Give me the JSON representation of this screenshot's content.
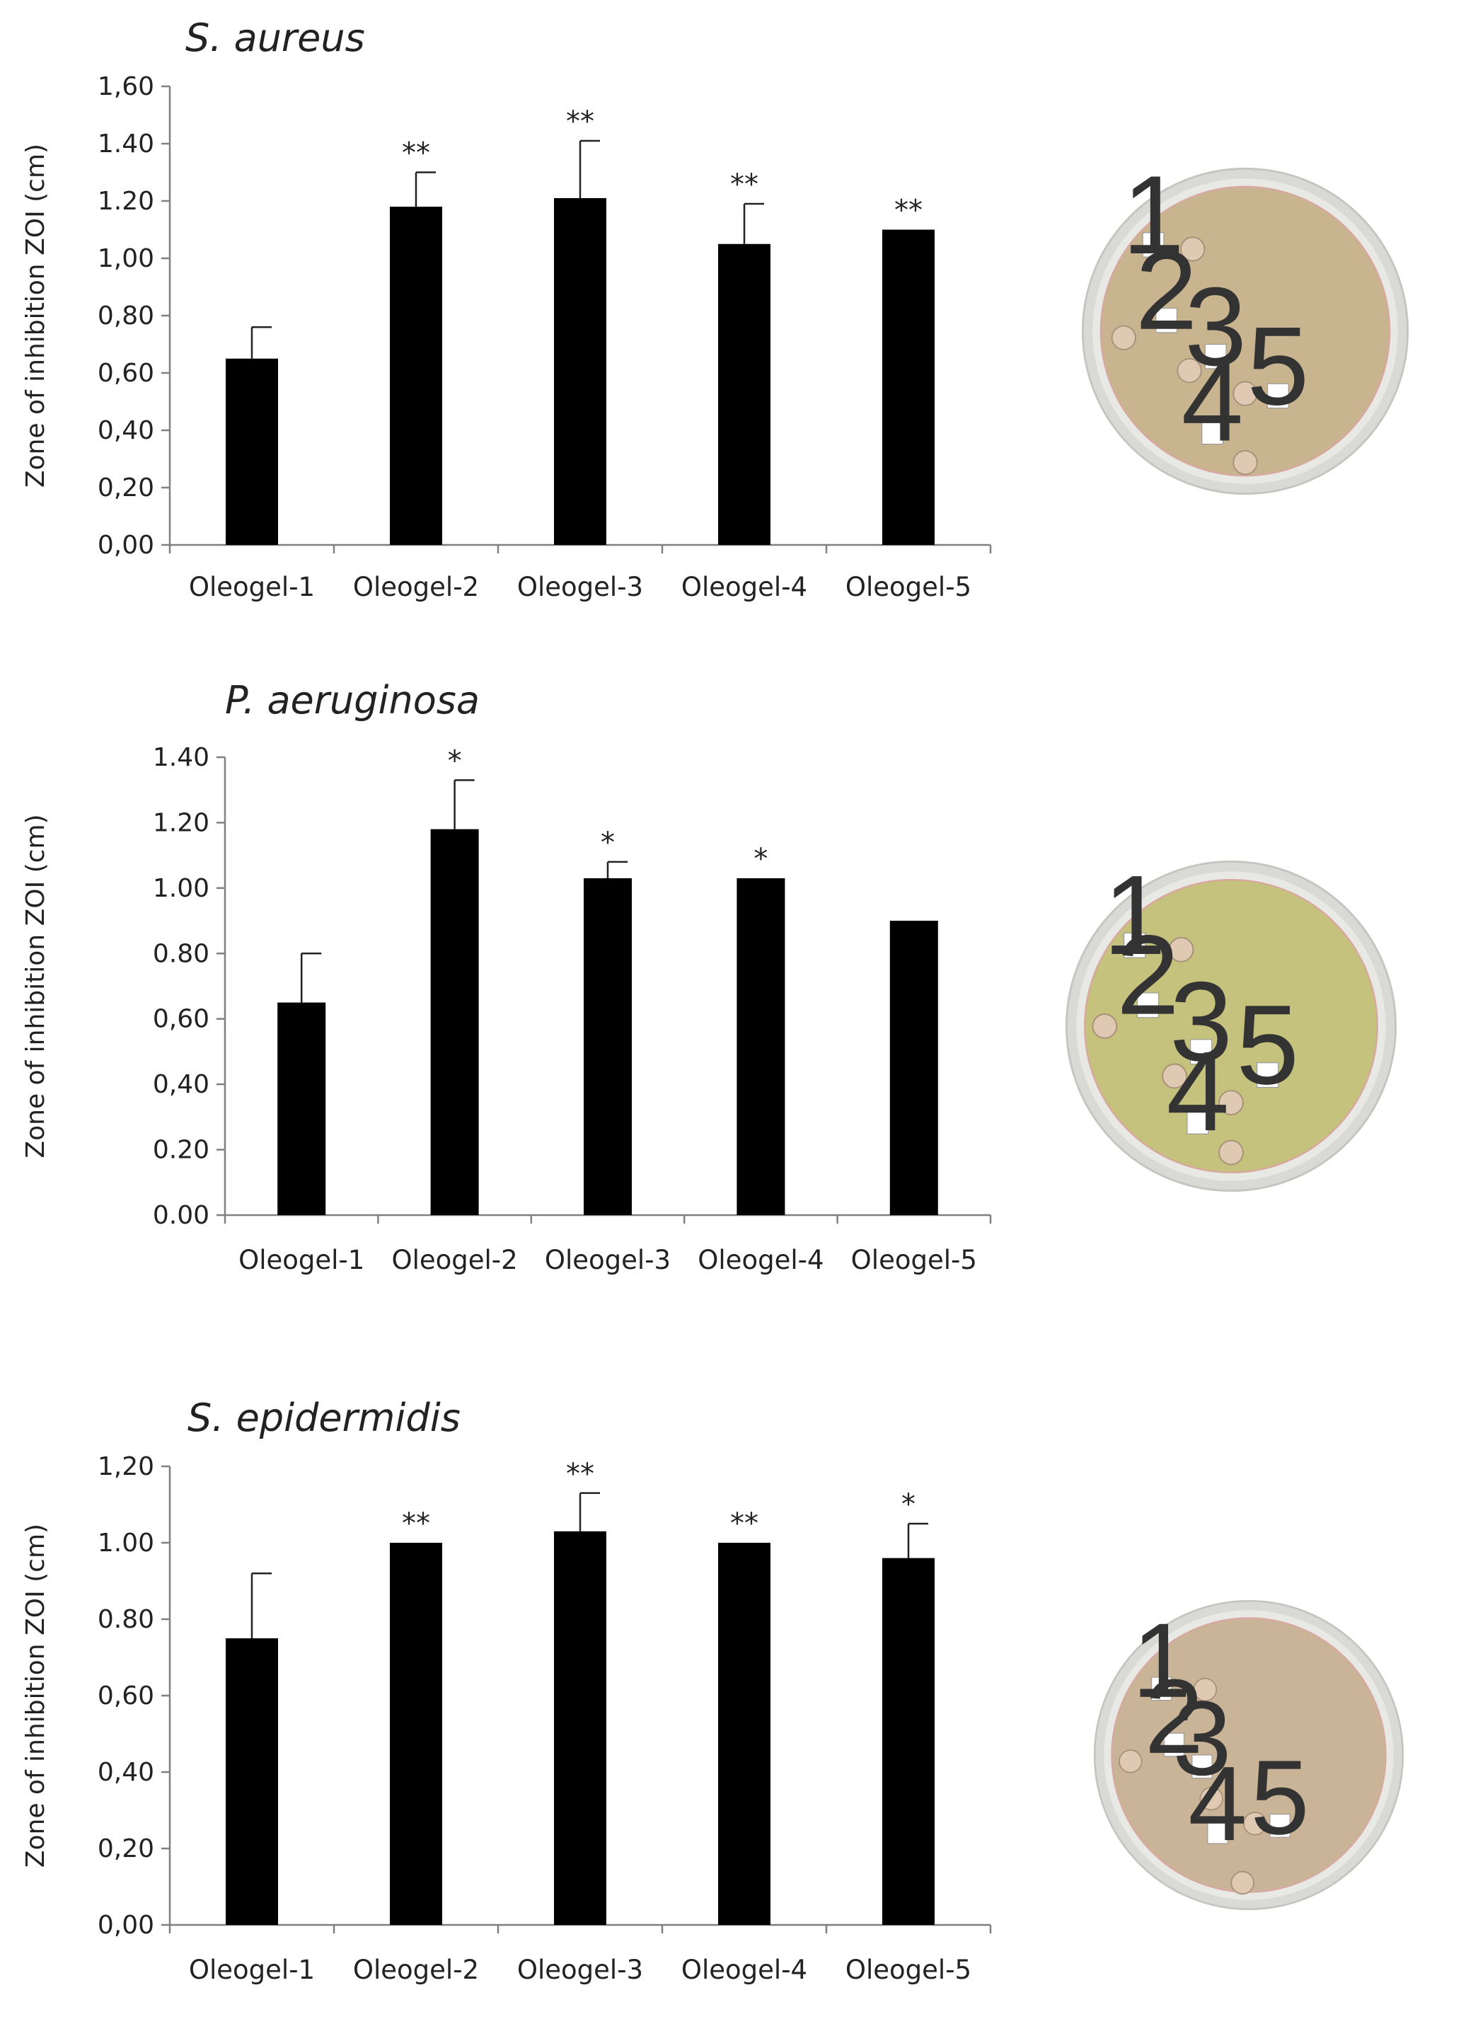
{
  "colors": {
    "bar": "#000000",
    "axis": "#808080",
    "text": "#222222"
  },
  "chart_data": [
    {
      "type": "bar",
      "title": "S. aureus",
      "xlabel": "",
      "ylabel": "Zone of inhibition ZOI (cm)",
      "categories": [
        "Oleogel-1",
        "Oleogel-2",
        "Oleogel-3",
        "Oleogel-4",
        "Oleogel-5"
      ],
      "values": [
        0.65,
        1.18,
        1.21,
        1.05,
        1.1
      ],
      "errors": [
        0.11,
        0.12,
        0.2,
        0.14,
        0.0
      ],
      "significance": [
        "",
        "**",
        "**",
        "**",
        "**"
      ],
      "ylim": [
        0,
        1.6
      ],
      "yticks": [
        "0,00",
        "0,20",
        "0,40",
        "0,60",
        "0,80",
        "1,00",
        "1.20",
        "1.40",
        "1,60"
      ],
      "plate_labels": [
        "1",
        "2",
        "3",
        "4",
        "5"
      ],
      "plate_color": "#c8b48e"
    },
    {
      "type": "bar",
      "title": "P. aeruginosa",
      "xlabel": "",
      "ylabel": "Zone of inhibition ZOI (cm)",
      "categories": [
        "Oleogel-1",
        "Oleogel-2",
        "Oleogel-3",
        "Oleogel-4",
        "Oleogel-5"
      ],
      "values": [
        0.65,
        1.18,
        1.03,
        1.03,
        0.9
      ],
      "errors": [
        0.15,
        0.15,
        0.05,
        0.0,
        0.0
      ],
      "significance": [
        "",
        "*",
        "*",
        "*",
        ""
      ],
      "ylim": [
        0,
        1.4
      ],
      "yticks": [
        "0.00",
        "0.20",
        "0,40",
        "0,60",
        "0.80",
        "1.00",
        "1.20",
        "1.40"
      ],
      "plate_labels": [
        "1",
        "2",
        "3",
        "4",
        "5"
      ],
      "plate_color": "#c4c27c"
    },
    {
      "type": "bar",
      "title": "S. epidermidis",
      "xlabel": "",
      "ylabel": "Zone of inhibition ZOI (cm)",
      "categories": [
        "Oleogel-1",
        "Oleogel-2",
        "Oleogel-3",
        "Oleogel-4",
        "Oleogel-5"
      ],
      "values": [
        0.75,
        1.0,
        1.03,
        1.0,
        0.96
      ],
      "errors": [
        0.17,
        0.0,
        0.1,
        0.0,
        0.09
      ],
      "significance": [
        "",
        "**",
        "**",
        "**",
        "*"
      ],
      "ylim": [
        0,
        1.2
      ],
      "yticks": [
        "0,00",
        "0,20",
        "0,40",
        "0,60",
        "0.80",
        "1.00",
        "1,20"
      ],
      "plate_labels": [
        "1",
        "2",
        "3",
        "4",
        "5"
      ],
      "plate_color": "#c9b497"
    }
  ]
}
